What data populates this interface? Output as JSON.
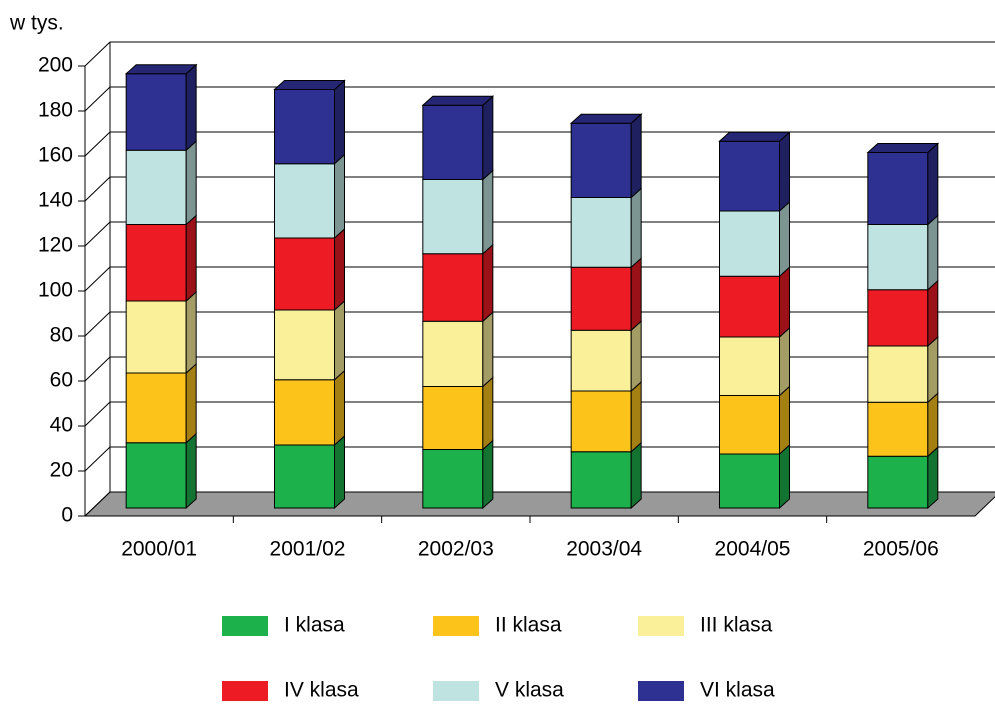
{
  "chart_data": {
    "type": "bar3d_stacked",
    "ylabel": "w tys.",
    "categories": [
      "2000/01",
      "2001/02",
      "2002/03",
      "2003/04",
      "2004/05",
      "2005/06"
    ],
    "series": [
      {
        "name": "I klasa",
        "color": "#1db14b",
        "values": [
          29,
          28,
          26,
          25,
          24,
          23
        ]
      },
      {
        "name": "II klasa",
        "color": "#fcc41b",
        "values": [
          31,
          29,
          28,
          27,
          26,
          24
        ]
      },
      {
        "name": "III klasa",
        "color": "#faf09a",
        "values": [
          32,
          31,
          29,
          27,
          26,
          25
        ]
      },
      {
        "name": "IV klasa",
        "color": "#ed1c24",
        "values": [
          34,
          32,
          30,
          28,
          27,
          25
        ]
      },
      {
        "name": "V klasa",
        "color": "#bfe3e1",
        "values": [
          33,
          33,
          33,
          31,
          29,
          29
        ]
      },
      {
        "name": "VI klasa",
        "color": "#2e3192",
        "values": [
          34,
          33,
          33,
          33,
          31,
          32
        ]
      }
    ],
    "ylim": [
      0,
      200
    ],
    "yticks": [
      0,
      20,
      40,
      60,
      80,
      100,
      120,
      140,
      160,
      180,
      200
    ],
    "grid": true,
    "stacked": true,
    "legend": "bottom"
  }
}
